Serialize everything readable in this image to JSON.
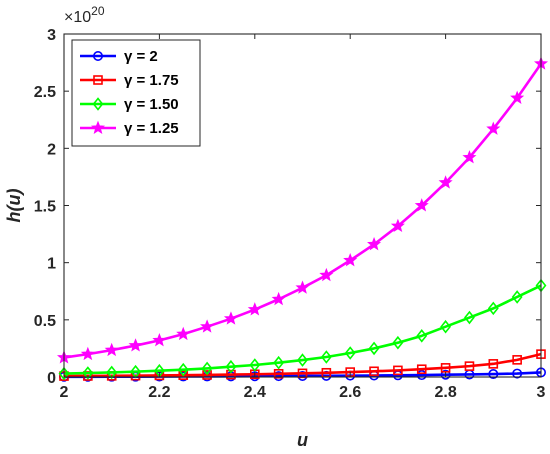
{
  "chart_data": {
    "type": "line",
    "title": "",
    "xlabel": "u",
    "ylabel": "h(u)",
    "y_exponent_label": "×10",
    "y_exponent_power": "20",
    "xlim": [
      2,
      3
    ],
    "ylim": [
      0,
      3
    ],
    "x_ticks": [
      2,
      2.2,
      2.4,
      2.6,
      2.8,
      3
    ],
    "x_tick_labels": [
      "2",
      "2.2",
      "2.4",
      "2.6",
      "2.8",
      "3"
    ],
    "y_ticks": [
      0,
      0.5,
      1,
      1.5,
      2,
      2.5,
      3
    ],
    "y_tick_labels": [
      "0",
      "0.5",
      "1",
      "1.5",
      "2",
      "2.5",
      "3"
    ],
    "grid": false,
    "legend_position": "top-left",
    "x": [
      2.0,
      2.05,
      2.1,
      2.15,
      2.2,
      2.25,
      2.3,
      2.35,
      2.4,
      2.45,
      2.5,
      2.55,
      2.6,
      2.65,
      2.7,
      2.75,
      2.8,
      2.85,
      2.9,
      2.95,
      3.0
    ],
    "series": [
      {
        "name": "γ = 2",
        "color": "#0000ff",
        "marker": "circle",
        "values": [
          0.002,
          0.002,
          0.003,
          0.003,
          0.004,
          0.005,
          0.005,
          0.006,
          0.007,
          0.008,
          0.009,
          0.01,
          0.012,
          0.013,
          0.015,
          0.017,
          0.02,
          0.022,
          0.026,
          0.03,
          0.04
        ]
      },
      {
        "name": "γ = 1.75",
        "color": "#ff0000",
        "marker": "square",
        "values": [
          0.008,
          0.009,
          0.01,
          0.012,
          0.014,
          0.016,
          0.018,
          0.021,
          0.024,
          0.028,
          0.032,
          0.037,
          0.043,
          0.05,
          0.058,
          0.068,
          0.08,
          0.095,
          0.115,
          0.15,
          0.2
        ]
      },
      {
        "name": "γ = 1.50",
        "color": "#00ff00",
        "marker": "diamond",
        "values": [
          0.03,
          0.035,
          0.04,
          0.047,
          0.055,
          0.064,
          0.075,
          0.09,
          0.105,
          0.125,
          0.148,
          0.175,
          0.21,
          0.25,
          0.3,
          0.36,
          0.44,
          0.52,
          0.6,
          0.7,
          0.8
        ]
      },
      {
        "name": "γ = 1.25",
        "color": "#ff00ff",
        "marker": "star",
        "values": [
          0.17,
          0.2,
          0.235,
          0.275,
          0.32,
          0.375,
          0.44,
          0.51,
          0.59,
          0.68,
          0.78,
          0.89,
          1.02,
          1.16,
          1.32,
          1.5,
          1.7,
          1.92,
          2.17,
          2.44,
          2.74
        ]
      }
    ]
  }
}
